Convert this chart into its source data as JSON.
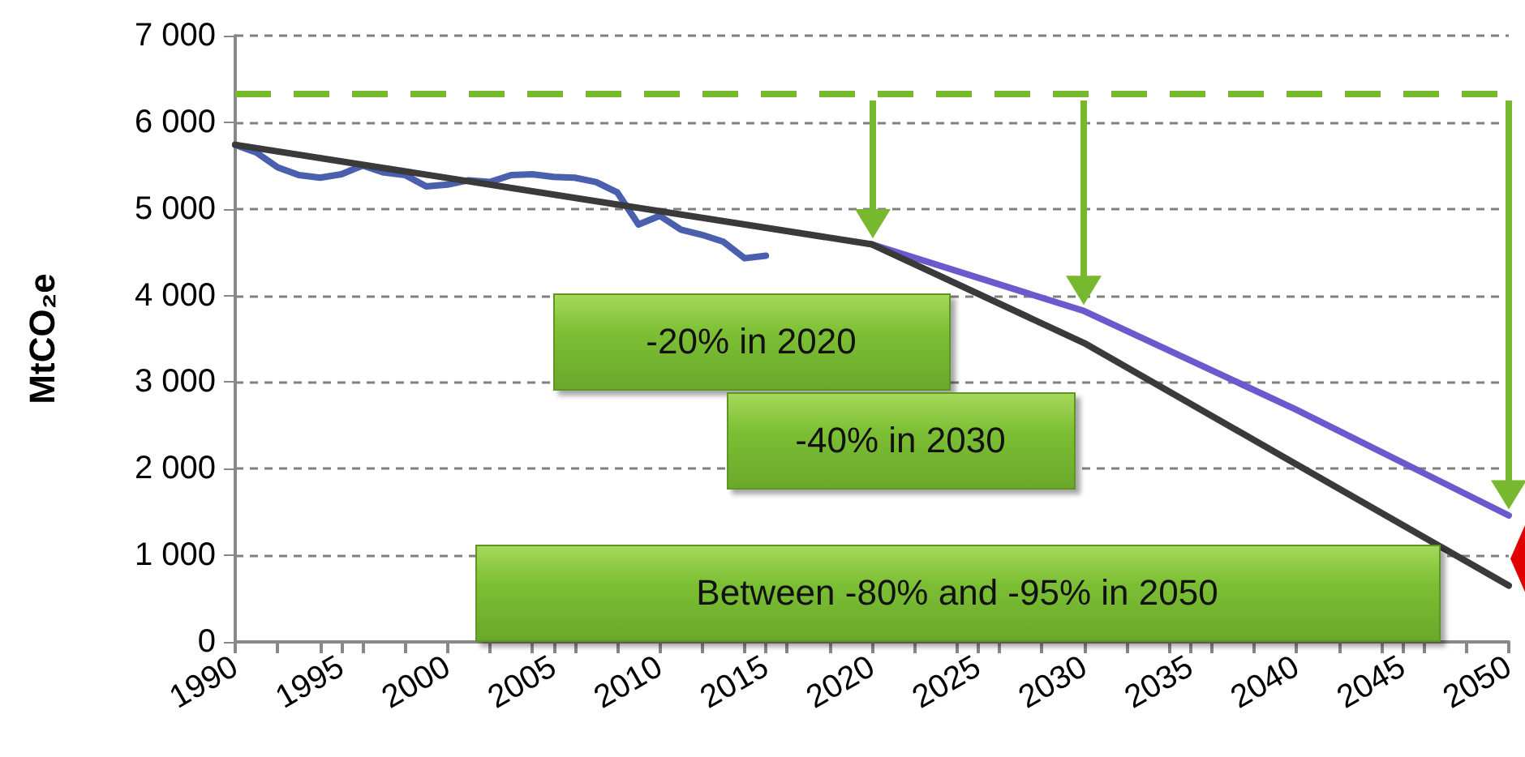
{
  "chart_data": {
    "type": "line",
    "ylabel": "MtCO₂e",
    "xlim": [
      1990,
      2050
    ],
    "xticks": [
      1990,
      1995,
      2000,
      2005,
      2010,
      2015,
      2020,
      2025,
      2030,
      2035,
      2040,
      2045,
      2050
    ],
    "ylim": [
      0,
      7000
    ],
    "yticks": [
      {
        "value": 0,
        "label": "0"
      },
      {
        "value": 1000,
        "label": "1 000"
      },
      {
        "value": 2000,
        "label": "2 000"
      },
      {
        "value": 3000,
        "label": "3 000"
      },
      {
        "value": 4000,
        "label": "4 000"
      },
      {
        "value": 5000,
        "label": "5 000"
      },
      {
        "value": 6000,
        "label": "6 000"
      },
      {
        "value": 7000,
        "label": "7 000"
      }
    ],
    "grid": "y",
    "marker": "none",
    "line_style": "solid",
    "series": [
      {
        "color": "#4a5fae",
        "x": [
          1990,
          1991,
          1992,
          1993,
          1994,
          1995,
          1996,
          1997,
          1998,
          1999,
          2000,
          2001,
          2002,
          2003,
          2004,
          2005,
          2006,
          2007,
          2008,
          2009,
          2010,
          2011,
          2012,
          2013,
          2014,
          2015
        ],
        "values": [
          5740,
          5650,
          5480,
          5390,
          5360,
          5400,
          5500,
          5420,
          5390,
          5260,
          5280,
          5330,
          5310,
          5390,
          5400,
          5370,
          5360,
          5310,
          5190,
          4820,
          4920,
          4760,
          4700,
          4620,
          4430,
          4460
        ]
      },
      {
        "color": "#6a5acd",
        "x": [
          2020,
          2030,
          2040,
          2050
        ],
        "values": [
          4590,
          3820,
          2680,
          1460
        ]
      },
      {
        "color": "#3a3a3a",
        "x": [
          1990,
          2020,
          2030,
          2040,
          2050
        ],
        "values": [
          5740,
          4590,
          3450,
          2050,
          650
        ]
      }
    ],
    "ref_lines": [
      {
        "axis": "y",
        "value": 6330,
        "color": "#77b82e",
        "line_style": "dashed"
      }
    ],
    "annotations": [
      "-20% in 2020",
      "-40% in 2030",
      "Between -80% and -95% in 2050"
    ]
  }
}
